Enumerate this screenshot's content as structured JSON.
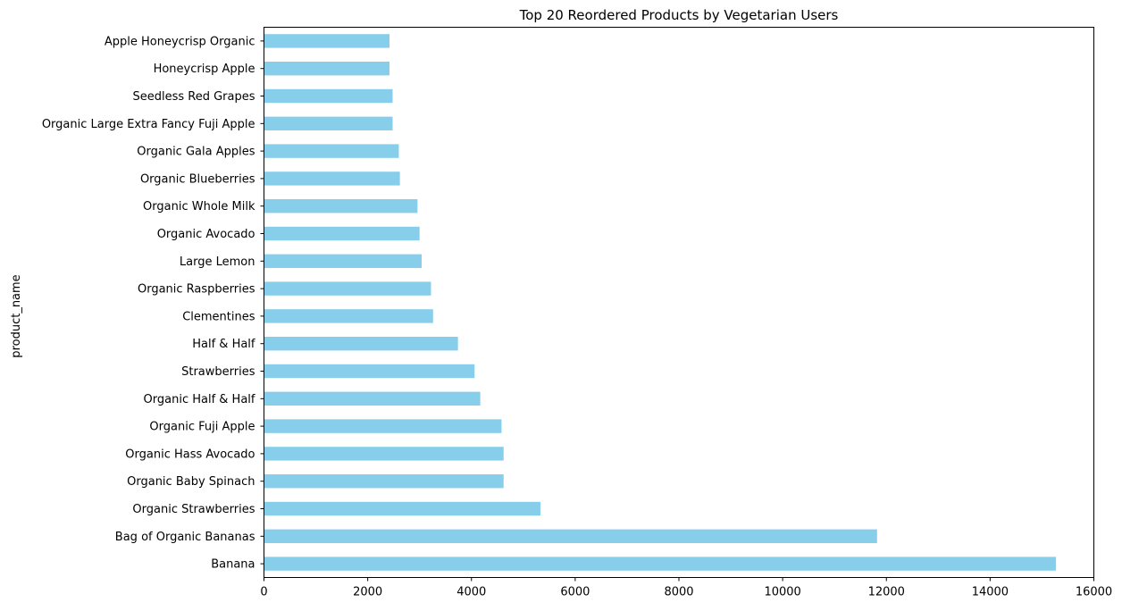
{
  "chart_data": {
    "type": "bar",
    "orientation": "horizontal",
    "title": "Top 20 Reordered Products by Vegetarian Users",
    "xlabel": "",
    "ylabel": "product_name",
    "xlim": [
      0,
      16000
    ],
    "xticks": [
      0,
      2000,
      4000,
      6000,
      8000,
      10000,
      12000,
      14000,
      16000
    ],
    "grid": false,
    "bar_color": "#87ceeb",
    "categories": [
      "Banana",
      "Bag of Organic Bananas",
      "Organic Strawberries",
      "Organic Baby Spinach",
      "Organic Hass Avocado",
      "Organic Fuji Apple",
      "Organic Half & Half",
      "Strawberries",
      "Half & Half",
      "Clementines",
      "Organic Raspberries",
      "Large Lemon",
      "Organic Avocado",
      "Organic Whole Milk",
      "Organic Blueberries",
      "Organic Gala Apples",
      "Organic Large Extra Fancy Fuji Apple",
      "Seedless Red Grapes",
      "Honeycrisp Apple",
      "Apple Honeycrisp Organic"
    ],
    "values": [
      15270,
      11820,
      5330,
      4620,
      4620,
      4580,
      4170,
      4060,
      3740,
      3260,
      3220,
      3040,
      3000,
      2960,
      2620,
      2600,
      2480,
      2480,
      2420,
      2420
    ]
  }
}
